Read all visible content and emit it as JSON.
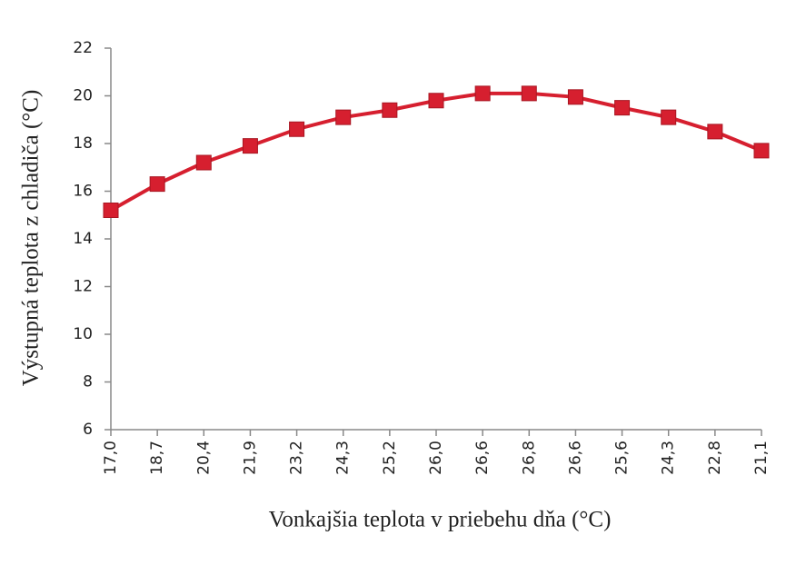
{
  "chart_data": {
    "type": "line",
    "x_label": "Vonkajšia teplota v priebehu dňa (°C)",
    "y_label": "Výstupná teplota z chladiča (°C)",
    "categories": [
      "17,0",
      "18,7",
      "20,4",
      "21,9",
      "23,2",
      "24,3",
      "25,2",
      "26,0",
      "26,6",
      "26,8",
      "26,6",
      "25,6",
      "24,3",
      "22,8",
      "21,1"
    ],
    "values": [
      15.2,
      16.3,
      17.2,
      17.9,
      18.6,
      19.1,
      19.4,
      19.8,
      20.1,
      20.1,
      19.95,
      19.5,
      19.1,
      18.5,
      17.7
    ],
    "color": "#d61f2f",
    "ylim": [
      6,
      22
    ],
    "yticks": [
      6,
      8,
      10,
      12,
      14,
      16,
      18,
      20,
      22
    ],
    "grid": false
  }
}
